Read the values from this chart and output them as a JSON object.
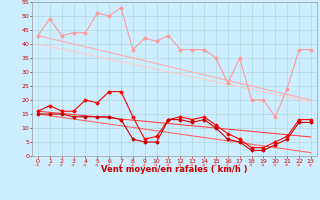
{
  "x": [
    0,
    1,
    2,
    3,
    4,
    5,
    6,
    7,
    8,
    9,
    10,
    11,
    12,
    13,
    14,
    15,
    16,
    17,
    18,
    19,
    20,
    21,
    22,
    23
  ],
  "series": [
    {
      "name": "rafales_max",
      "color": "#ff9999",
      "linewidth": 0.8,
      "marker": "D",
      "markersize": 1.5,
      "values": [
        43,
        49,
        43,
        44,
        44,
        51,
        50,
        53,
        38,
        42,
        41,
        43,
        38,
        38,
        38,
        35,
        26,
        35,
        20,
        20,
        14,
        24,
        38,
        38
      ]
    },
    {
      "name": "rafales_trend1",
      "color": "#ffaaaa",
      "linewidth": 0.8,
      "marker": null,
      "markersize": 0,
      "values": [
        43,
        42,
        41,
        40,
        39,
        38,
        37,
        36,
        35,
        34,
        33,
        32,
        31,
        30,
        29,
        28,
        27,
        26,
        25,
        24,
        23,
        22,
        21,
        20
      ]
    },
    {
      "name": "rafales_trend2",
      "color": "#ffcccc",
      "linewidth": 0.8,
      "marker": null,
      "markersize": 0,
      "values": [
        40,
        39.1,
        38.2,
        37.3,
        36.4,
        35.5,
        34.6,
        33.7,
        32.8,
        31.9,
        31.0,
        30.1,
        29.2,
        28.3,
        27.4,
        26.5,
        25.6,
        24.7,
        23.8,
        22.9,
        22.0,
        21.1,
        20.2,
        19.3
      ]
    },
    {
      "name": "vent_moyen",
      "color": "#ff0000",
      "linewidth": 0.8,
      "marker": "D",
      "markersize": 1.5,
      "values": [
        16,
        18,
        16,
        16,
        20,
        19,
        23,
        23,
        14,
        6,
        7,
        13,
        14,
        13,
        14,
        11,
        8,
        6,
        3,
        3,
        5,
        7,
        13,
        13
      ]
    },
    {
      "name": "vent_trend1",
      "color": "#ff4444",
      "linewidth": 0.8,
      "marker": null,
      "markersize": 0,
      "values": [
        16,
        15.6,
        15.2,
        14.8,
        14.4,
        14.0,
        13.6,
        13.2,
        12.8,
        12.4,
        12.0,
        11.6,
        11.2,
        10.8,
        10.4,
        10.0,
        9.6,
        9.2,
        8.8,
        8.4,
        8.0,
        7.6,
        7.2,
        6.8
      ]
    },
    {
      "name": "vent_trend2",
      "color": "#ff6666",
      "linewidth": 0.8,
      "marker": null,
      "markersize": 0,
      "values": [
        15,
        14.4,
        13.8,
        13.2,
        12.6,
        12.0,
        11.4,
        10.8,
        10.2,
        9.6,
        9.0,
        8.4,
        7.8,
        7.2,
        6.6,
        6.0,
        5.4,
        4.8,
        4.2,
        3.6,
        3.0,
        2.4,
        1.8,
        1.2
      ]
    },
    {
      "name": "vent_min",
      "color": "#cc0000",
      "linewidth": 0.8,
      "marker": "D",
      "markersize": 1.5,
      "values": [
        15,
        15,
        15,
        14,
        14,
        14,
        14,
        13,
        6,
        5,
        5,
        13,
        13,
        12,
        13,
        10,
        6,
        5,
        2,
        2,
        4,
        6,
        12,
        12
      ]
    }
  ],
  "xlim": [
    -0.5,
    23.5
  ],
  "ylim": [
    0,
    55
  ],
  "yticks": [
    0,
    5,
    10,
    15,
    20,
    25,
    30,
    35,
    40,
    45,
    50,
    55
  ],
  "xticks": [
    0,
    1,
    2,
    3,
    4,
    5,
    6,
    7,
    8,
    9,
    10,
    11,
    12,
    13,
    14,
    15,
    16,
    17,
    18,
    19,
    20,
    21,
    22,
    23
  ],
  "xlabel": "Vent moyen/en rafales ( km/h )",
  "background_color": "#cceeff",
  "grid_color": "#aacccc",
  "xlabel_color": "#cc0000",
  "xlabel_fontsize": 6,
  "tick_fontsize": 4.5,
  "arrow_color": "#ff6666"
}
